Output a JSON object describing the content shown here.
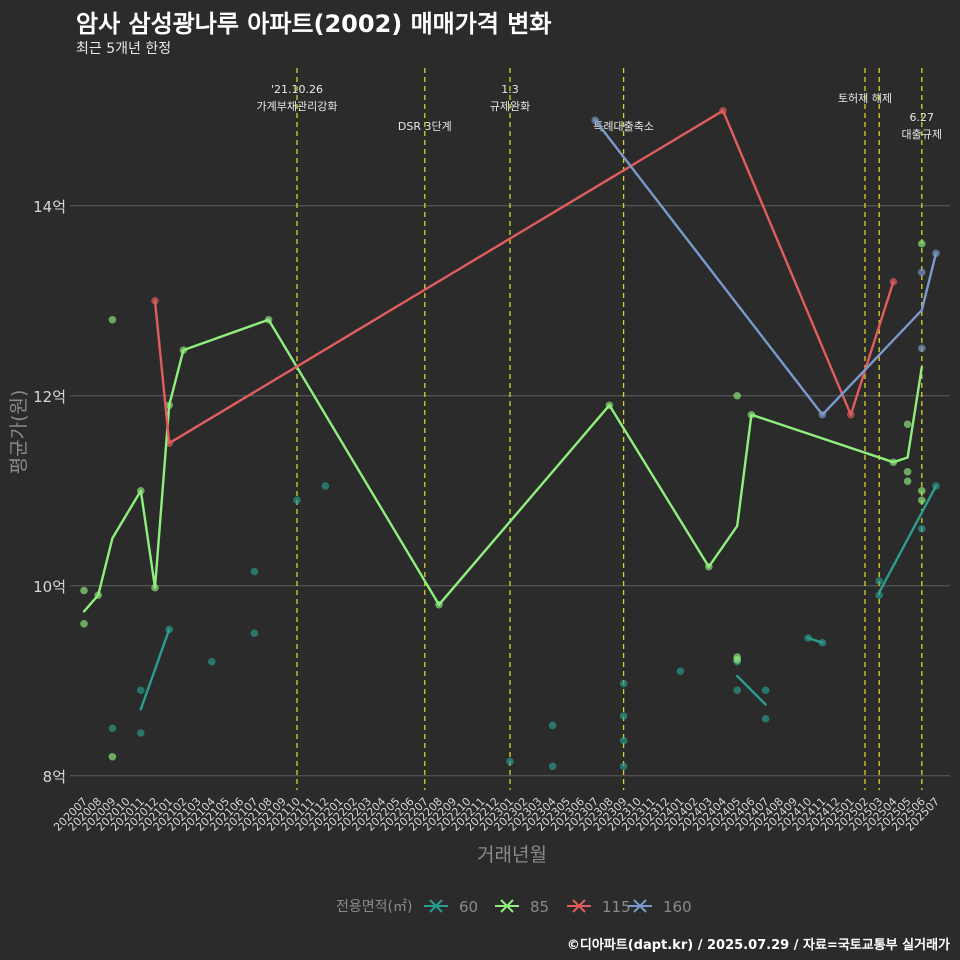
{
  "header": {
    "title": "암사 삼성광나루 아파트(2002) 매매가격 변화",
    "subtitle": "최근 5개년 한정"
  },
  "caption": "©디아파트(dapt.kr) / 2025.07.29 / 자료=국토교통부 실거래가",
  "colors": {
    "background": "#2b2b2b",
    "grid": "#5e5e5e",
    "event_line": "#d4d42a",
    "s60": "#2a9d8f",
    "s85": "#90ee7e",
    "s115": "#e05d5d",
    "s160": "#7b9acc"
  },
  "chart_data": {
    "type": "line",
    "xlabel": "거래년월",
    "ylabel": "평균가(원)",
    "ylim": [
      7.85,
      15.45
    ],
    "y_ticks": [
      8,
      10,
      12,
      14
    ],
    "y_tick_labels": [
      "8억",
      "10억",
      "12억",
      "14억"
    ],
    "x_categories": [
      "202007",
      "202008",
      "202009",
      "202010",
      "202011",
      "202012",
      "202101",
      "202102",
      "202103",
      "202104",
      "202105",
      "202106",
      "202107",
      "202108",
      "202109",
      "202110",
      "202111",
      "202112",
      "202201",
      "202202",
      "202203",
      "202204",
      "202205",
      "202206",
      "202207",
      "202208",
      "202209",
      "202210",
      "202211",
      "202212",
      "202301",
      "202302",
      "202303",
      "202304",
      "202305",
      "202306",
      "202307",
      "202308",
      "202309",
      "202310",
      "202311",
      "202312",
      "202401",
      "202402",
      "202403",
      "202404",
      "202405",
      "202406",
      "202407",
      "202408",
      "202409",
      "202410",
      "202411",
      "202412",
      "202501",
      "202502",
      "202503",
      "202504",
      "202505",
      "202506",
      "202507"
    ],
    "legend": {
      "title": "전용면적(㎡)",
      "position": "bottom",
      "items": [
        "60",
        "85",
        "115",
        "160"
      ]
    },
    "events": [
      {
        "x": "202110",
        "lines": [
          "'21.10.26",
          "가계부채관리강화"
        ],
        "level": 1
      },
      {
        "x": "202207",
        "lines": [
          "DSR 3단계"
        ],
        "level": 3
      },
      {
        "x": "202301",
        "lines": [
          "1.3",
          "규제완화"
        ],
        "level": 1
      },
      {
        "x": "202309",
        "lines": [
          "특례대출축소"
        ],
        "level": 3
      },
      {
        "x": "202502",
        "lines": [
          "토허제 해제"
        ],
        "level": 2
      },
      {
        "x": "202503",
        "lines": [],
        "level": 0
      },
      {
        "x": "202506",
        "lines": [
          "6.27",
          "대출규제"
        ],
        "level": 4
      }
    ],
    "series": [
      {
        "name": "60",
        "color": "#2a9d8f",
        "line": [
          {
            "x": "202011",
            "y": 8.7
          },
          {
            "x": "202101",
            "y": 9.54
          },
          {
            "x": "202405",
            "y": 9.05
          },
          {
            "x": "202407",
            "y": 8.75
          },
          {
            "x": "202410",
            "y": 9.45
          },
          {
            "x": "202411",
            "y": 9.4
          },
          {
            "x": "202503",
            "y": 9.93
          },
          {
            "x": "202507",
            "y": 11.05
          }
        ],
        "segments": [
          [
            0,
            1
          ],
          [
            2,
            3
          ],
          [
            4,
            5
          ],
          [
            6,
            7
          ]
        ],
        "points": [
          {
            "x": "202009",
            "y": 8.5
          },
          {
            "x": "202011",
            "y": 8.9
          },
          {
            "x": "202011",
            "y": 8.45
          },
          {
            "x": "202101",
            "y": 9.54
          },
          {
            "x": "202104",
            "y": 9.2
          },
          {
            "x": "202107",
            "y": 10.15
          },
          {
            "x": "202107",
            "y": 9.5
          },
          {
            "x": "202110",
            "y": 10.9
          },
          {
            "x": "202112",
            "y": 11.05
          },
          {
            "x": "202301",
            "y": 8.15
          },
          {
            "x": "202304",
            "y": 8.53
          },
          {
            "x": "202304",
            "y": 8.1
          },
          {
            "x": "202309",
            "y": 8.97
          },
          {
            "x": "202309",
            "y": 8.63
          },
          {
            "x": "202309",
            "y": 8.37
          },
          {
            "x": "202309",
            "y": 8.1
          },
          {
            "x": "202401",
            "y": 9.1
          },
          {
            "x": "202405",
            "y": 9.2
          },
          {
            "x": "202405",
            "y": 8.9
          },
          {
            "x": "202407",
            "y": 8.9
          },
          {
            "x": "202407",
            "y": 8.6
          },
          {
            "x": "202410",
            "y": 9.45
          },
          {
            "x": "202411",
            "y": 9.4
          },
          {
            "x": "202503",
            "y": 10.05
          },
          {
            "x": "202503",
            "y": 9.9
          },
          {
            "x": "202506",
            "y": 10.6
          },
          {
            "x": "202507",
            "y": 11.05
          }
        ]
      },
      {
        "name": "85",
        "color": "#90ee7e",
        "line": [
          {
            "x": "202007",
            "y": 9.73
          },
          {
            "x": "202008",
            "y": 9.9
          },
          {
            "x": "202009",
            "y": 10.5
          },
          {
            "x": "202011",
            "y": 11.0
          },
          {
            "x": "202012",
            "y": 9.98
          },
          {
            "x": "202101",
            "y": 11.9
          },
          {
            "x": "202102",
            "y": 12.48
          },
          {
            "x": "202108",
            "y": 12.8
          },
          {
            "x": "202208",
            "y": 9.8
          },
          {
            "x": "202308",
            "y": 11.9
          },
          {
            "x": "202403",
            "y": 10.2
          },
          {
            "x": "202405",
            "y": 10.63
          },
          {
            "x": "202406",
            "y": 11.8
          },
          {
            "x": "202504",
            "y": 11.3
          },
          {
            "x": "202505",
            "y": 11.35
          },
          {
            "x": "202506",
            "y": 12.3
          }
        ],
        "segments": [
          [
            0,
            15
          ]
        ],
        "points": [
          {
            "x": "202007",
            "y": 9.95
          },
          {
            "x": "202007",
            "y": 9.6
          },
          {
            "x": "202008",
            "y": 9.9
          },
          {
            "x": "202009",
            "y": 12.8
          },
          {
            "x": "202009",
            "y": 8.2
          },
          {
            "x": "202011",
            "y": 11.0
          },
          {
            "x": "202012",
            "y": 9.98
          },
          {
            "x": "202101",
            "y": 11.9
          },
          {
            "x": "202102",
            "y": 12.48
          },
          {
            "x": "202108",
            "y": 12.8
          },
          {
            "x": "202208",
            "y": 9.8
          },
          {
            "x": "202308",
            "y": 11.9
          },
          {
            "x": "202403",
            "y": 10.2
          },
          {
            "x": "202405",
            "y": 12.0
          },
          {
            "x": "202405",
            "y": 9.25
          },
          {
            "x": "202405",
            "y": 9.22
          },
          {
            "x": "202406",
            "y": 11.8
          },
          {
            "x": "202504",
            "y": 11.3
          },
          {
            "x": "202505",
            "y": 11.7
          },
          {
            "x": "202505",
            "y": 11.2
          },
          {
            "x": "202505",
            "y": 11.1
          },
          {
            "x": "202506",
            "y": 13.6
          },
          {
            "x": "202506",
            "y": 11.0
          },
          {
            "x": "202506",
            "y": 10.9
          }
        ]
      },
      {
        "name": "115",
        "color": "#e05d5d",
        "line": [
          {
            "x": "202012",
            "y": 13.0
          },
          {
            "x": "202101",
            "y": 11.5
          },
          {
            "x": "202404",
            "y": 15.0
          },
          {
            "x": "202501",
            "y": 11.8
          },
          {
            "x": "202504",
            "y": 13.2
          }
        ],
        "segments": [
          [
            0,
            4
          ]
        ],
        "points": [
          {
            "x": "202012",
            "y": 13.0
          },
          {
            "x": "202101",
            "y": 11.5
          },
          {
            "x": "202404",
            "y": 15.0
          },
          {
            "x": "202501",
            "y": 11.8
          },
          {
            "x": "202504",
            "y": 13.2
          }
        ]
      },
      {
        "name": "160",
        "color": "#7b9acc",
        "line": [
          {
            "x": "202307",
            "y": 14.9
          },
          {
            "x": "202411",
            "y": 11.8
          },
          {
            "x": "202506",
            "y": 12.9
          },
          {
            "x": "202507",
            "y": 13.5
          }
        ],
        "segments": [
          [
            0,
            3
          ]
        ],
        "points": [
          {
            "x": "202307",
            "y": 14.9
          },
          {
            "x": "202411",
            "y": 11.8
          },
          {
            "x": "202506",
            "y": 13.3
          },
          {
            "x": "202506",
            "y": 12.5
          },
          {
            "x": "202507",
            "y": 13.5
          }
        ]
      }
    ]
  }
}
